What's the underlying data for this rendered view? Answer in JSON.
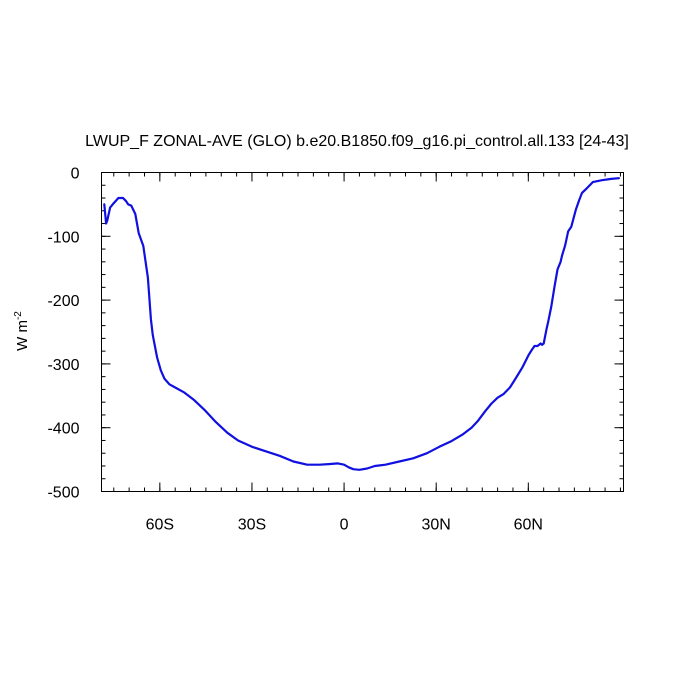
{
  "chart_data": {
    "type": "line",
    "title": "LWUP_F ZONAL-AVE (GLO) b.e20.B1850.f09_g16.pi_control.all.133 [24-43]",
    "xlabel": "",
    "ylabel": "W m",
    "ylabel_superscript": "-2",
    "xlim": [
      -79,
      91
    ],
    "ylim": [
      -500,
      0
    ],
    "x_ticks": [
      {
        "value": -60,
        "label": "60S"
      },
      {
        "value": -30,
        "label": "30S"
      },
      {
        "value": 0,
        "label": "0"
      },
      {
        "value": 30,
        "label": "30N"
      },
      {
        "value": 60,
        "label": "60N"
      }
    ],
    "y_ticks": [
      {
        "value": 0,
        "label": "0"
      },
      {
        "value": -100,
        "label": "-100"
      },
      {
        "value": -200,
        "label": "-200"
      },
      {
        "value": -300,
        "label": "-300"
      },
      {
        "value": -400,
        "label": "-400"
      },
      {
        "value": -500,
        "label": "-500"
      }
    ],
    "grid": false,
    "line_color": "#1010e0",
    "series": [
      {
        "x": [
          -78.1,
          -77.5,
          -77.1,
          -76.2,
          -75.0,
          -73.5,
          -72.0,
          -71.0,
          -70.3,
          -69.3,
          -68.0,
          -66.9,
          -65.4,
          -63.9,
          -62.9,
          -62.3,
          -60.9,
          -59.7,
          -58.5,
          -56.9,
          -55.0,
          -52.0,
          -49.0,
          -45.5,
          -42.0,
          -38.0,
          -34.5,
          -30.0,
          -25.5,
          -21.0,
          -16.5,
          -12.0,
          -8.0,
          -5.0,
          -2.0,
          0.0,
          1.5,
          3.0,
          5.0,
          7.5,
          10.0,
          13.5,
          18.0,
          22.5,
          27.0,
          31.0,
          35.0,
          38.5,
          41.5,
          43.5,
          46.0,
          48.0,
          50.0,
          52.0,
          54.0,
          56.0,
          58.0,
          60.0,
          61.0,
          62.0,
          63.0,
          64.0,
          64.5,
          65.0,
          66.0,
          66.5,
          67.5,
          68.5,
          69.5,
          70.5,
          71.0,
          72.0,
          73.0,
          74.0,
          75.5,
          76.5,
          77.5,
          79.0,
          81.0,
          84.0,
          87.0,
          89.5
        ],
        "y": [
          -50,
          -80,
          -75,
          -55,
          -48,
          -40,
          -40,
          -45,
          -50,
          -52,
          -65,
          -95,
          -115,
          -165,
          -230,
          -255,
          -290,
          -310,
          -323,
          -332,
          -337,
          -345,
          -356,
          -372,
          -390,
          -408,
          -420,
          -430,
          -437,
          -444,
          -453,
          -458,
          -458,
          -457,
          -456,
          -458,
          -462,
          -465,
          -466,
          -464,
          -460,
          -458,
          -453,
          -448,
          -440,
          -430,
          -421,
          -411,
          -400,
          -390,
          -374,
          -362,
          -353,
          -347,
          -337,
          -322,
          -306,
          -287,
          -279,
          -272,
          -272,
          -268,
          -270,
          -268,
          -244,
          -233,
          -210,
          -180,
          -152,
          -140,
          -130,
          -114,
          -92,
          -85,
          -58,
          -44,
          -32,
          -25,
          -15,
          -12,
          -10,
          -9
        ]
      }
    ]
  }
}
